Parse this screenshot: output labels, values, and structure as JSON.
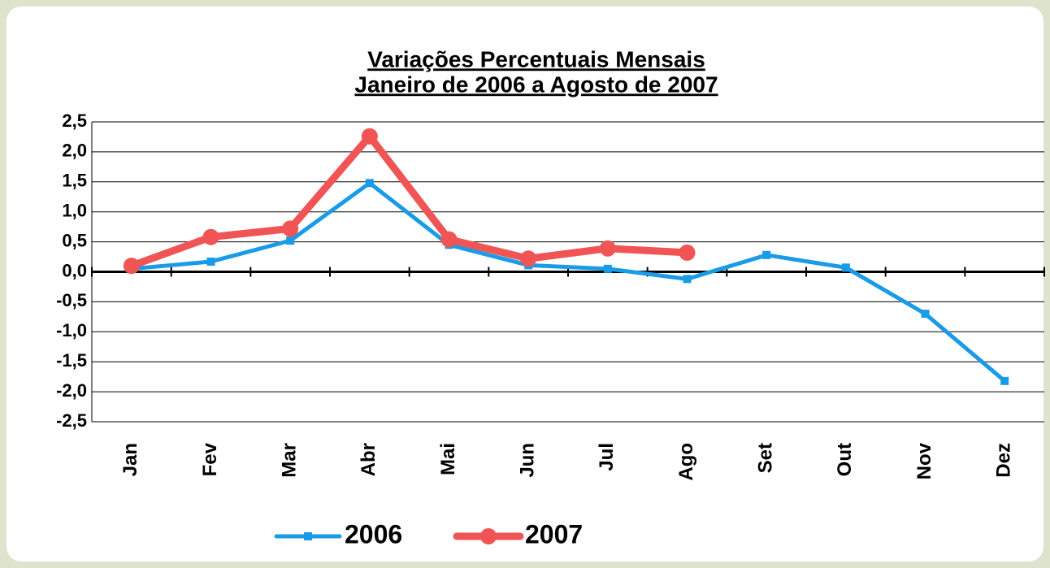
{
  "chart_data": {
    "type": "line",
    "title": "Variações Percentuais Mensais",
    "subtitle": "Janeiro de 2006 a Agosto de 2007",
    "categories": [
      "Jan",
      "Fev",
      "Mar",
      "Abr",
      "Mai",
      "Jun",
      "Jul",
      "Ago",
      "Set",
      "Out",
      "Nov",
      "Dez"
    ],
    "series": [
      {
        "name": "2006",
        "color": "#1a9be8",
        "values": [
          0.05,
          0.17,
          0.52,
          1.48,
          0.45,
          0.11,
          0.05,
          -0.12,
          0.28,
          0.07,
          -0.7,
          -1.82
        ]
      },
      {
        "name": "2007",
        "color": "#f05454",
        "values": [
          0.1,
          0.58,
          0.72,
          2.26,
          0.54,
          0.22,
          0.39,
          0.32,
          null,
          null,
          null,
          null
        ]
      }
    ],
    "ylim": [
      -2.5,
      2.5
    ],
    "yticks": [
      {
        "value": -2.5,
        "label": "-2,5"
      },
      {
        "value": -2.0,
        "label": "-2,0"
      },
      {
        "value": -1.5,
        "label": "-1,5"
      },
      {
        "value": -1.0,
        "label": "-1,0"
      },
      {
        "value": -0.5,
        "label": "-0,5"
      },
      {
        "value": 0,
        "label": "0,0"
      },
      {
        "value": 0.5,
        "label": "0,5"
      },
      {
        "value": 1.0,
        "label": "1,0"
      },
      {
        "value": 1.5,
        "label": "1,5"
      },
      {
        "value": 2.0,
        "label": "2,0"
      },
      {
        "value": 2.5,
        "label": "2,5"
      }
    ],
    "grid": true,
    "legend": "bottom"
  }
}
